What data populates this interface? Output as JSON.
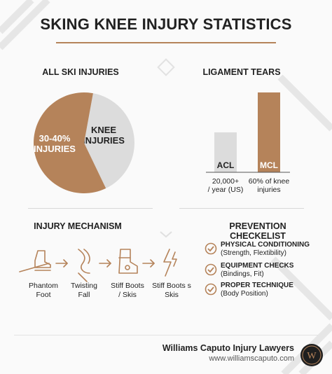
{
  "title": "SKING KNEE INJURY STATISTICS",
  "colors": {
    "accent": "#b5835a",
    "light": "#dcdcdc",
    "text": "#222222"
  },
  "sections": {
    "pie_title": "ALL SKI INJURIES",
    "bar_title": "LIGAMENT TEARS",
    "mechanism_title": "INJURY MECHANISM",
    "checklist_title": "PREVENTION CHECKELIST"
  },
  "chart_data": [
    {
      "type": "pie",
      "title": "ALL SKI INJURIES",
      "slices": [
        {
          "label": "KNEE INJURIES",
          "label_lines": [
            "KNEE",
            "INJURIES"
          ],
          "value": 40,
          "color": "#dcdcdc"
        },
        {
          "label": "30-40% INJURIES",
          "label_lines": [
            "30-40%",
            "INJURIES"
          ],
          "value": 60,
          "color": "#b5835a"
        }
      ]
    },
    {
      "type": "bar",
      "title": "LIGAMENT TEARS",
      "categories": [
        "ACL",
        "MCL"
      ],
      "values": [
        20000,
        40000
      ],
      "colors": [
        "#dcdcdc",
        "#b5835a"
      ],
      "sublabels": [
        [
          "20,000+",
          "/ year (US)"
        ],
        [
          "60% of knee",
          "injuries"
        ]
      ]
    }
  ],
  "mechanism": [
    {
      "label_lines": [
        "Phantom",
        "Foot"
      ],
      "icon": "ski-boot-icon"
    },
    {
      "label_lines": [
        "Twisting",
        "Fall"
      ],
      "icon": "knee-twist-icon"
    },
    {
      "label_lines": [
        "Stiff Boots",
        "/ Skis"
      ],
      "icon": "boot-icon"
    },
    {
      "label_lines": [
        "Stiff Boots s",
        "Skis"
      ],
      "icon": "lightning-icon"
    }
  ],
  "checklist": [
    {
      "head": "PHYSICAL CONDITIONING",
      "sub": "(Strength, Flextibility)"
    },
    {
      "head": "EQUIPMENT CHECKS",
      "sub": "(Bindings, Fit)"
    },
    {
      "head": "PROPER TECHNIQUE",
      "sub": "(Body Position)"
    }
  ],
  "footer": {
    "name": "Williams Caputo Injury Lawyers",
    "url": "www.williamscaputo.com",
    "logo_letters": "W"
  }
}
